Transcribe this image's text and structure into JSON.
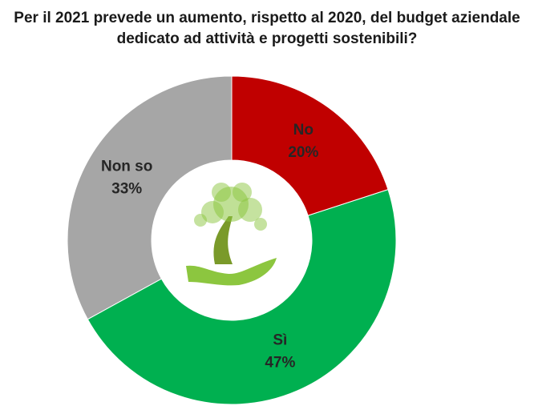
{
  "chart_data": {
    "type": "donut",
    "title": "Per il 2021 prevede un aumento, rispetto al 2020, del budget aziendale dedicato ad attività e progetti sostenibili?",
    "categories": [
      "No",
      "Sì",
      "Non so"
    ],
    "values": [
      20,
      47,
      33
    ],
    "value_labels": [
      "20%",
      "47%",
      "33%"
    ],
    "colors": [
      "#c00000",
      "#00b050",
      "#a6a6a6"
    ]
  }
}
